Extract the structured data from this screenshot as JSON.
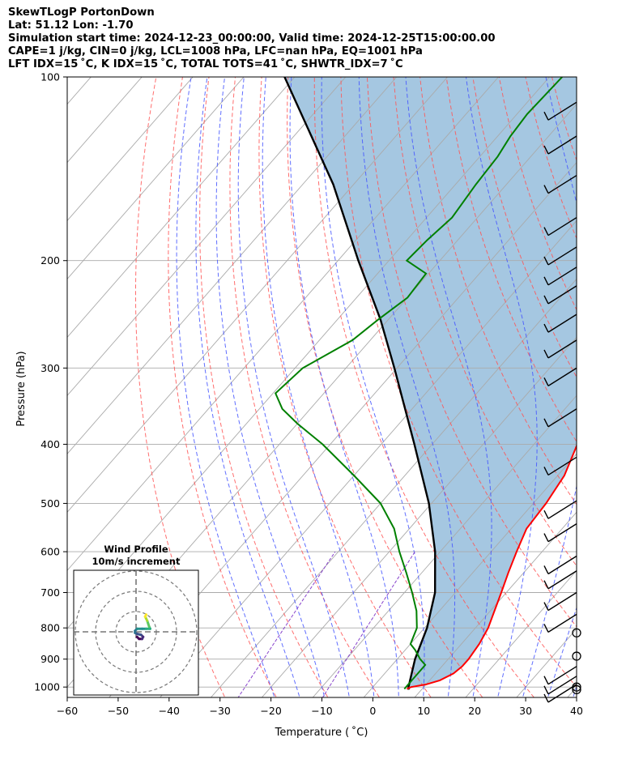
{
  "header": {
    "line1": "SkewTLogP PortonDown",
    "line2": "Lat: 51.12   Lon: -1.70",
    "line3": "Simulation start time: 2024-12-23_00:00:00, Valid time: 2024-12-25T15:00:00.00",
    "line4": "CAPE=1 j/kg, CIN=0 j/kg, LCL=1008 hPa, LFC=nan hPa, EQ=1001 hPa",
    "line5": "LFT IDX=15 ˚C, K IDX=15 ˚C, TOTAL TOTS=41 ˚C, SHWTR_IDX=7 ˚C"
  },
  "chart_data": {
    "type": "line",
    "title": "",
    "xlabel": "Temperature ( ˚C)",
    "ylabel": "Pressure (hPa)",
    "xlim": [
      -60,
      40
    ],
    "ylim": [
      1040,
      100
    ],
    "yscale": "log",
    "skew": "temperature lines skewed to the right with height",
    "x_ticks": [
      -60,
      -50,
      -40,
      -30,
      -20,
      -10,
      0,
      10,
      20,
      30,
      40
    ],
    "x_tick_labels": [
      "−60",
      "−50",
      "−40",
      "−30",
      "−20",
      "−10",
      "0",
      "10",
      "20",
      "30",
      "40"
    ],
    "y_ticks": [
      1000,
      900,
      800,
      700,
      600,
      500,
      400,
      300,
      200,
      100
    ],
    "y_tick_labels": [
      "1000",
      "900",
      "800",
      "700",
      "600",
      "500",
      "400",
      "300",
      "200",
      "100"
    ],
    "grid": true,
    "colors": {
      "temperature": "#ff0000",
      "dewpoint": "#008000",
      "parcel": "#000000",
      "cape_fill": "#a0c4df",
      "isotherm": "#aaaaaa",
      "dry_adiabat": "#ff5555",
      "moist_adiabat": "#4455ff",
      "mixing_ratio": "#8844cc"
    },
    "series": [
      {
        "name": "",
        "role": "temperature",
        "values": [
          [
            1007,
            7
          ],
          [
            1000,
            7.5
          ],
          [
            990,
            10
          ],
          [
            975,
            12
          ],
          [
            950,
            13.5
          ],
          [
            925,
            14
          ],
          [
            900,
            14
          ],
          [
            850,
            13.5
          ],
          [
            800,
            12.5
          ],
          [
            750,
            10.8
          ],
          [
            700,
            9
          ],
          [
            650,
            7
          ],
          [
            600,
            5
          ],
          [
            550,
            3
          ],
          [
            500,
            2.5
          ],
          [
            450,
            1.3
          ],
          [
            400,
            -1.5
          ],
          [
            350,
            -6
          ],
          [
            300,
            -12
          ],
          [
            250,
            -20
          ],
          [
            230,
            -24.5
          ],
          [
            210,
            -29
          ],
          [
            190,
            -34
          ],
          [
            175,
            -37.5
          ],
          [
            165,
            -39.5
          ],
          [
            150,
            -42
          ],
          [
            130,
            -48
          ],
          [
            110,
            -53.5
          ],
          [
            100,
            -56.5
          ]
        ]
      },
      {
        "name": "",
        "role": "dewpoint",
        "values": [
          [
            1007,
            6.5
          ],
          [
            975,
            6.5
          ],
          [
            950,
            6.5
          ],
          [
            920,
            6.5
          ],
          [
            900,
            4.5
          ],
          [
            870,
            2
          ],
          [
            850,
            0
          ],
          [
            800,
            -1.5
          ],
          [
            750,
            -4.5
          ],
          [
            700,
            -8.5
          ],
          [
            650,
            -13
          ],
          [
            600,
            -18
          ],
          [
            550,
            -23
          ],
          [
            500,
            -30
          ],
          [
            450,
            -40
          ],
          [
            400,
            -51.5
          ],
          [
            370,
            -60
          ],
          [
            350,
            -65.5
          ],
          [
            330,
            -69.5
          ],
          [
            300,
            -68.5
          ],
          [
            270,
            -63.5
          ],
          [
            250,
            -62
          ],
          [
            230,
            -60
          ],
          [
            210,
            -60.5
          ],
          [
            200,
            -66.5
          ],
          [
            185,
            -66
          ],
          [
            170,
            -65
          ],
          [
            150,
            -66
          ],
          [
            135,
            -66.5
          ],
          [
            125,
            -67.5
          ],
          [
            115,
            -68
          ],
          [
            100,
            -67.5
          ]
        ]
      },
      {
        "name": "",
        "role": "parcel",
        "values": [
          [
            1010,
            7.5
          ],
          [
            1000,
            7
          ],
          [
            900,
            3.5
          ],
          [
            800,
            0.5
          ],
          [
            700,
            -4
          ],
          [
            600,
            -11
          ],
          [
            500,
            -20.5
          ],
          [
            400,
            -33.5
          ],
          [
            300,
            -50.5
          ],
          [
            250,
            -61.5
          ],
          [
            200,
            -76
          ],
          [
            150,
            -94
          ],
          [
            100,
            -122
          ]
        ]
      }
    ],
    "wind_barbs": {
      "note": "drawn along the right edge at x=40 ˚C",
      "levels_hPa": [
        1000,
        990,
        960,
        925,
        890,
        815,
        760,
        700,
        645,
        610,
        540,
        495,
        420,
        350,
        300,
        270,
        245,
        220,
        205,
        190,
        170,
        145,
        125,
        110
      ],
      "calm_levels_hPa": [
        1010,
        1000,
        890,
        815
      ]
    },
    "hodograph": {
      "title_line1": "Wind Profile",
      "title_line2": "10m/s increment",
      "rings": 3,
      "increment_ms": 10,
      "trace_ms": [
        [
          0.5,
          -2.5
        ],
        [
          1.5,
          -3.5
        ],
        [
          3,
          -3.5
        ],
        [
          3.5,
          -2.5
        ],
        [
          2.5,
          -1.5
        ],
        [
          0.5,
          -1
        ],
        [
          -0.5,
          -0.5
        ],
        [
          -0.5,
          0.5
        ],
        [
          0.5,
          1.5
        ],
        [
          3,
          1.5
        ],
        [
          5,
          1.5
        ],
        [
          7,
          1.5
        ],
        [
          6.5,
          2.5
        ],
        [
          6,
          4
        ],
        [
          5.5,
          5.5
        ],
        [
          5,
          6.5
        ],
        [
          4.5,
          7.5
        ],
        [
          5,
          8.5
        ]
      ]
    }
  }
}
